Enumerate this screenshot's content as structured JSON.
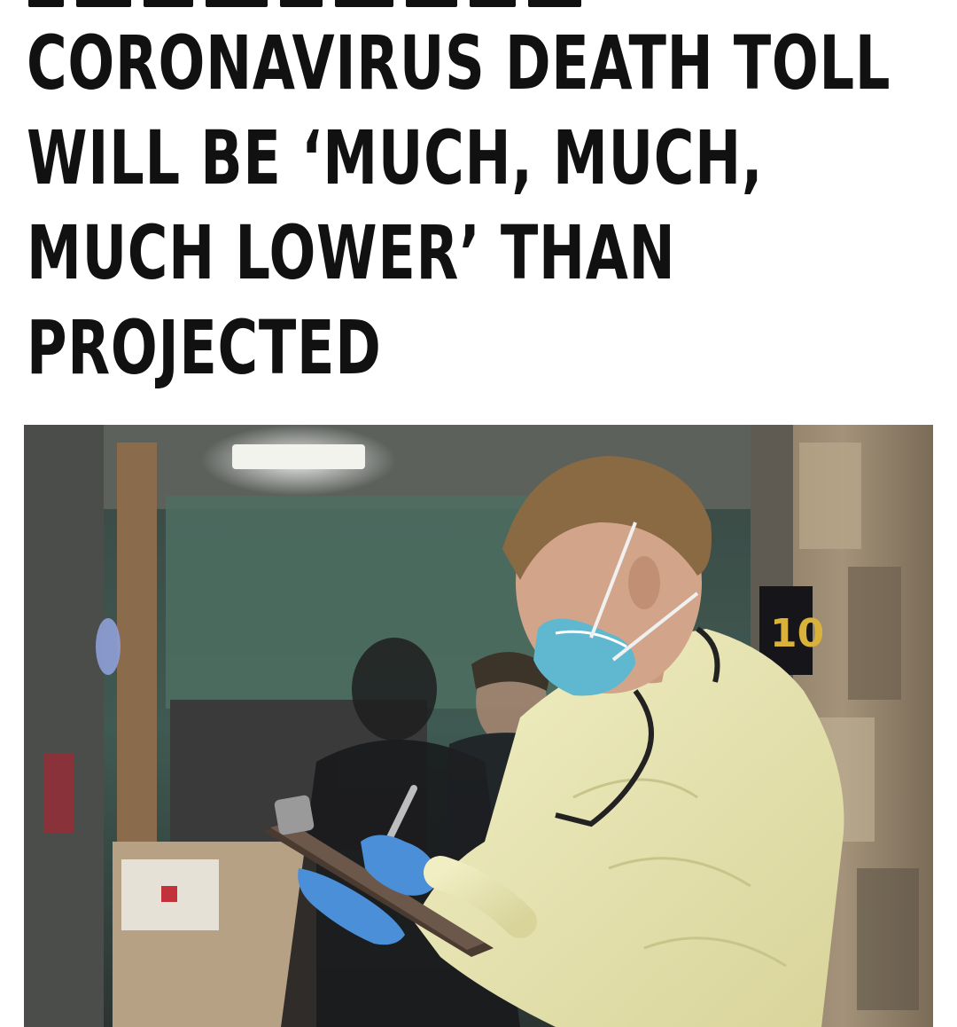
{
  "headline": {
    "lines": [
      "CORONAVIRUS DEATH TOLL",
      "WILL BE ‘MUCH, MUCH,",
      "MUCH LOWER’ THAN",
      "PROJECTED"
    ]
  },
  "photo": {
    "sign_text": "10",
    "mask_color": "#5fb8cf",
    "gown_color": "#e7e4b0",
    "glove_color": "#4a8fd8"
  }
}
